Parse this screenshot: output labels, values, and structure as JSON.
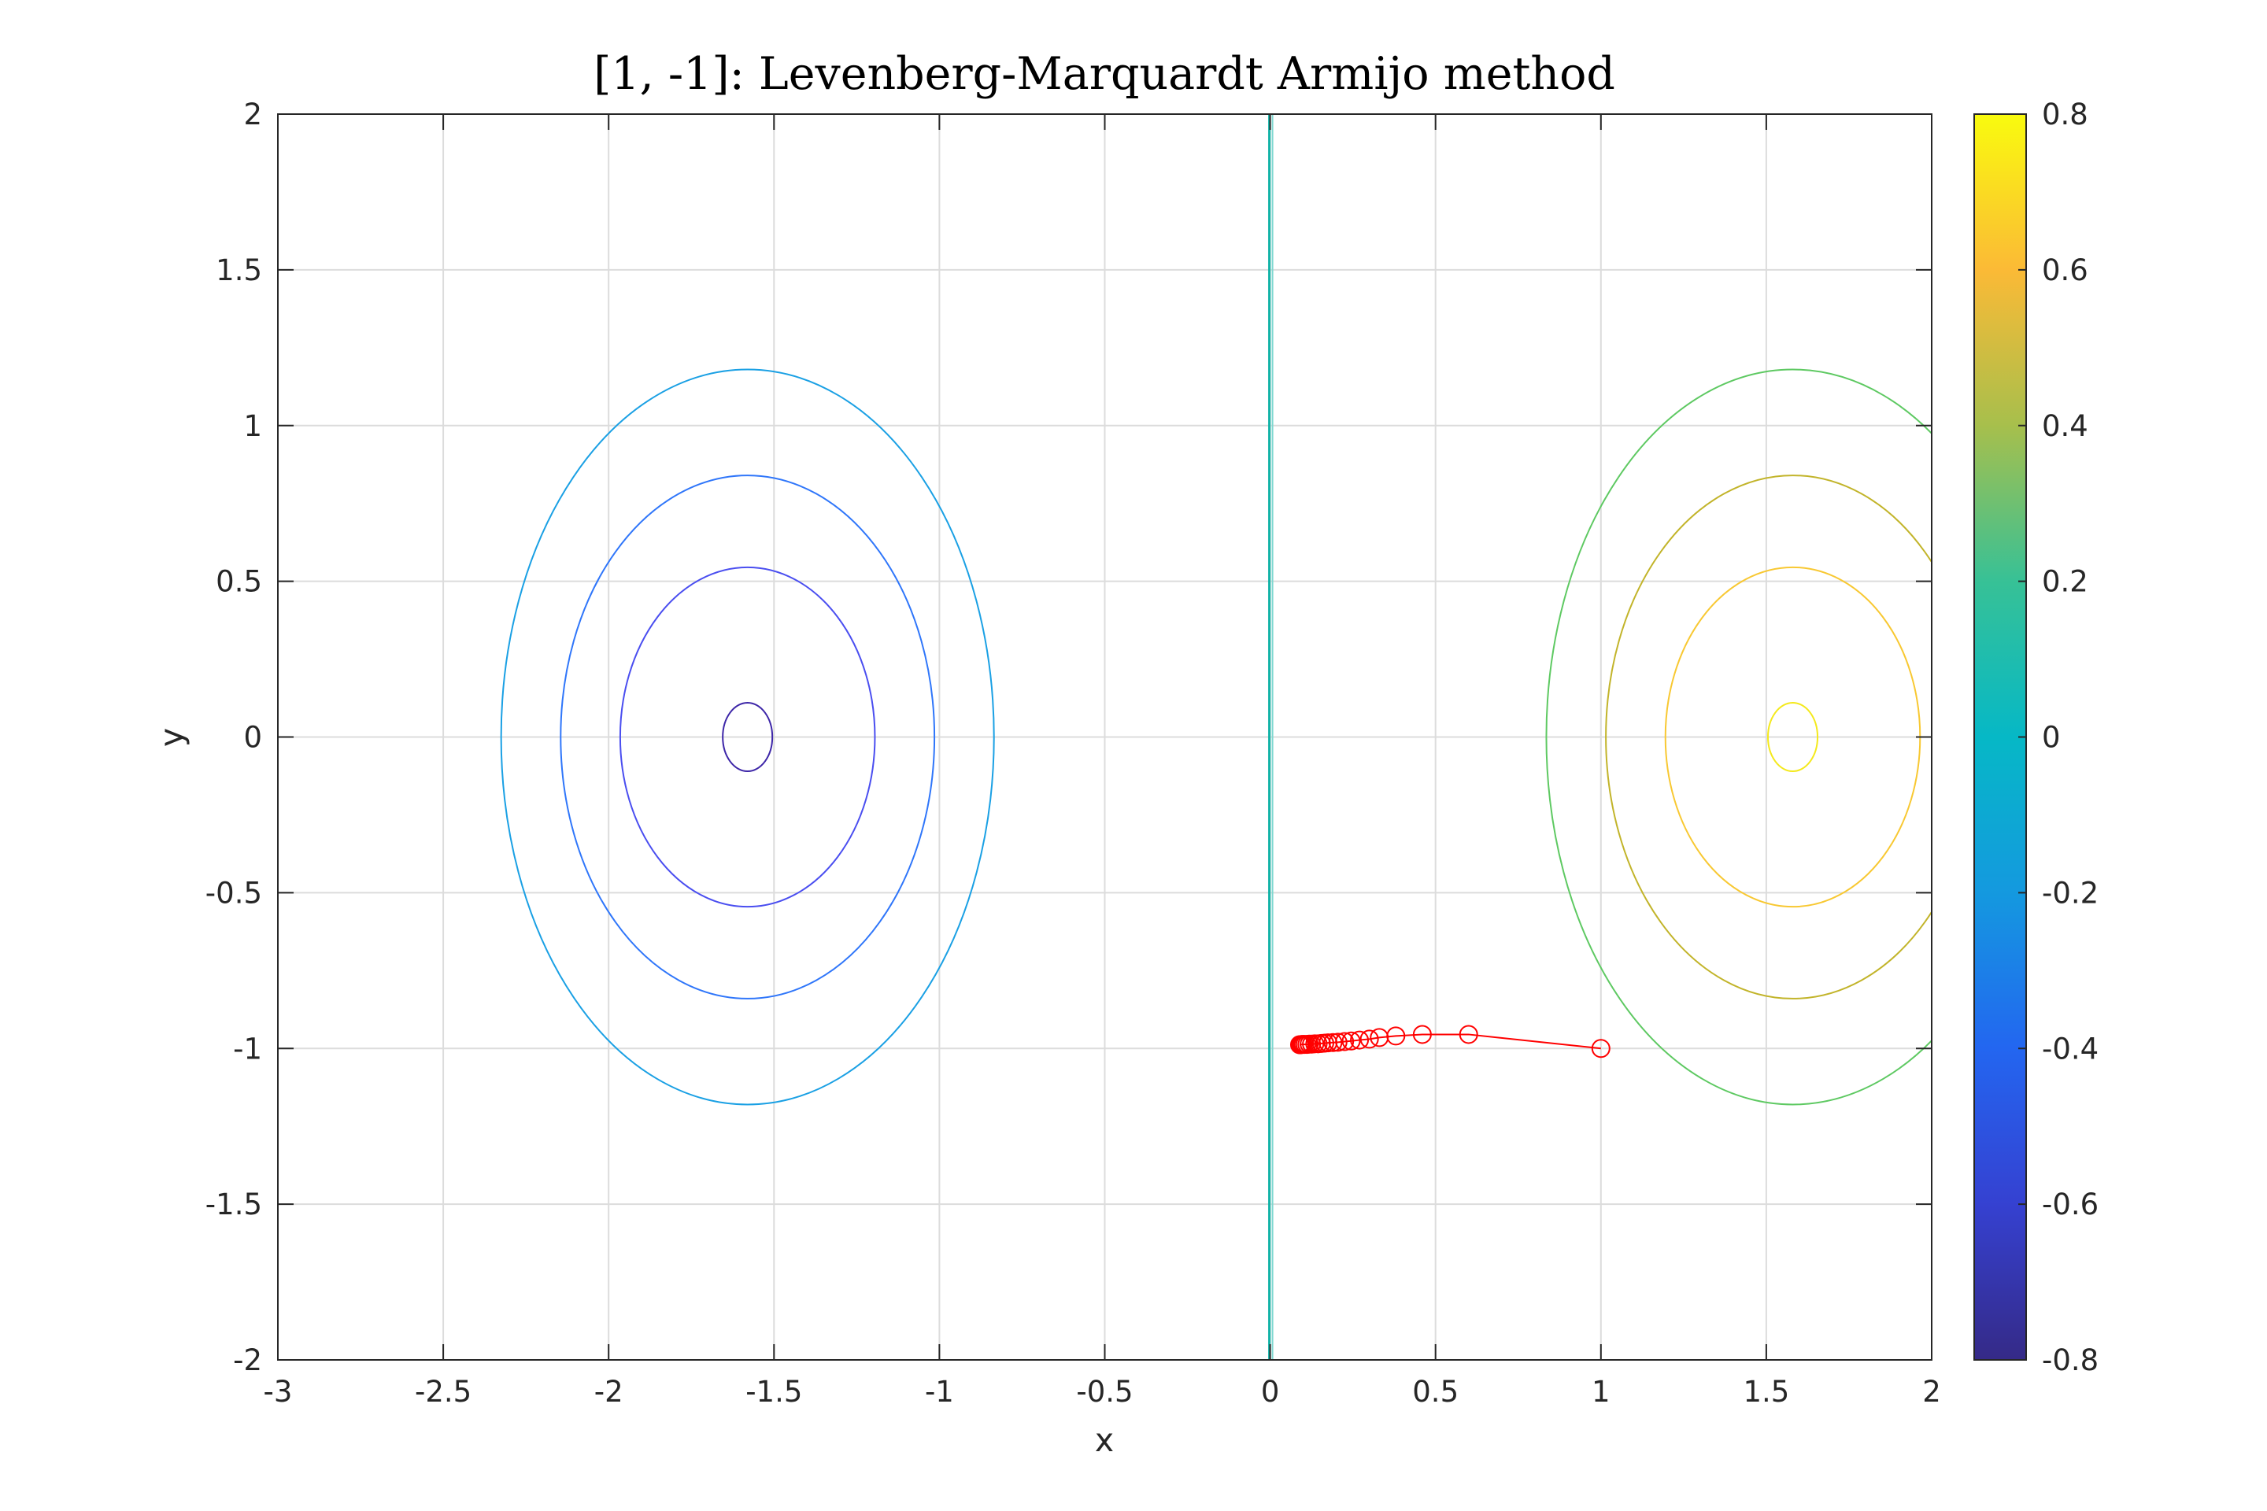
{
  "chart_data": {
    "type": "contour",
    "title": "[1, -1]: Levenberg-Marquardt Armijo method",
    "xlabel": "x",
    "ylabel": "y",
    "xlim": [
      -3,
      2
    ],
    "ylim": [
      -2,
      2
    ],
    "grid": true,
    "x_ticks": [
      "-3",
      "-2.5",
      "-2",
      "-1.5",
      "-1",
      "-0.5",
      "0",
      "0.5",
      "1",
      "1.5",
      "2"
    ],
    "y_ticks": [
      "-2",
      "-1.5",
      "-1",
      "-0.5",
      "0",
      "0.5",
      "1",
      "1.5",
      "2"
    ],
    "colorbar": {
      "limits": [
        -0.8,
        0.8
      ],
      "ticks": [
        "-0.8",
        "-0.6",
        "-0.4",
        "-0.2",
        "0",
        "0.2",
        "0.4",
        "0.6",
        "0.8"
      ],
      "colormap": "parula"
    },
    "contour_sets": [
      {
        "center": [
          -1.58,
          0
        ],
        "levels": [
          {
            "level": -0.8,
            "rx": 0.075,
            "ry": 0.11,
            "color": "#3d26a8"
          },
          {
            "level": -0.6,
            "rx": 0.385,
            "ry": 0.545,
            "color": "#4a4ef0"
          },
          {
            "level": -0.4,
            "rx": 0.565,
            "ry": 0.84,
            "color": "#2f76fa"
          },
          {
            "level": -0.2,
            "rx": 0.745,
            "ry": 1.18,
            "color": "#1aa0e4"
          }
        ]
      },
      {
        "center": [
          1.58,
          0
        ],
        "levels": [
          {
            "level": 0.2,
            "rx": 0.745,
            "ry": 1.18,
            "color": "#5ec962"
          },
          {
            "level": 0.4,
            "rx": 0.565,
            "ry": 0.84,
            "color": "#c2b42a"
          },
          {
            "level": 0.6,
            "rx": 0.385,
            "ry": 0.545,
            "color": "#f8c832"
          },
          {
            "level": 0.8,
            "rx": 0.075,
            "ry": 0.11,
            "color": "#f4e91c"
          }
        ]
      }
    ],
    "zero_contour": {
      "level": 0,
      "x": 0,
      "color": "#11b3a7"
    },
    "iterate_path": {
      "color": "#ff0000",
      "marker": "circle",
      "x": [
        1.0,
        0.6,
        0.46,
        0.38,
        0.33,
        0.3,
        0.27,
        0.245,
        0.225,
        0.205,
        0.19,
        0.175,
        0.165,
        0.155,
        0.145,
        0.135,
        0.125,
        0.118,
        0.111,
        0.105,
        0.1,
        0.096,
        0.092,
        0.089
      ],
      "y": [
        -1.0,
        -0.955,
        -0.955,
        -0.96,
        -0.965,
        -0.97,
        -0.973,
        -0.976,
        -0.978,
        -0.98,
        -0.981,
        -0.982,
        -0.983,
        -0.984,
        -0.985,
        -0.985,
        -0.986,
        -0.986,
        -0.987,
        -0.987,
        -0.987,
        -0.987,
        -0.988,
        -0.988
      ]
    }
  }
}
